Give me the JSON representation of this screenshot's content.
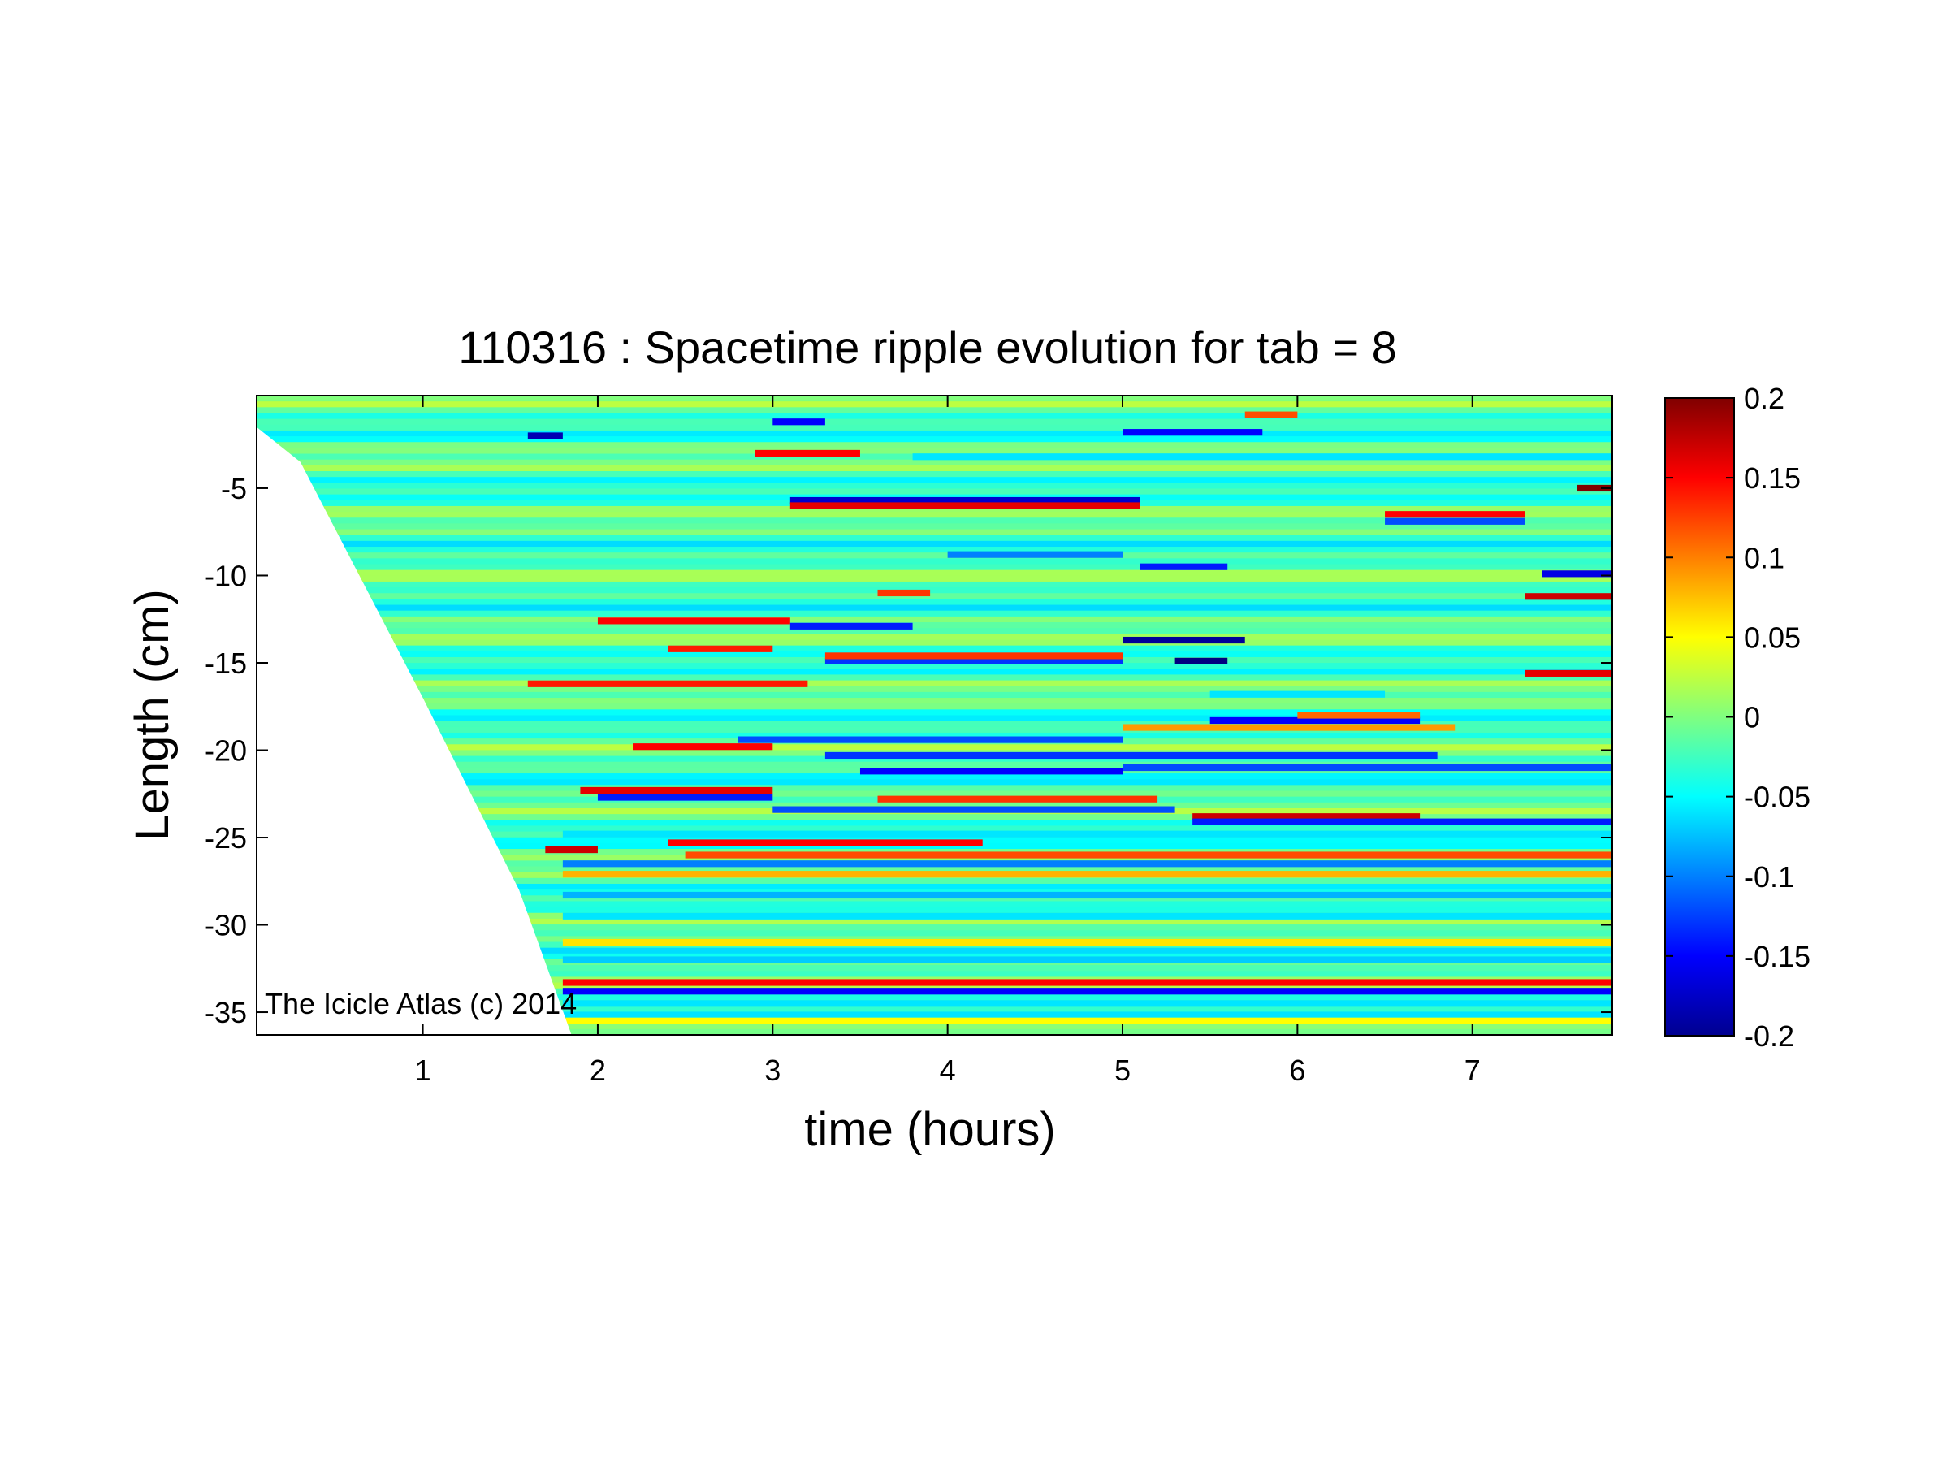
{
  "chart_data": {
    "type": "heatmap",
    "title": "110316 : Spacetime ripple evolution for tab = 8",
    "xlabel": "time (hours)",
    "ylabel": "Length (cm)",
    "xlim": [
      0.05,
      7.8
    ],
    "ylim": [
      -36.3,
      0.3
    ],
    "xticks": [
      1,
      2,
      3,
      4,
      5,
      6,
      7
    ],
    "xtick_labels": [
      "1",
      "2",
      "3",
      "4",
      "5",
      "6",
      "7"
    ],
    "yticks": [
      -5,
      -10,
      -15,
      -20,
      -25,
      -30,
      -35
    ],
    "ytick_labels": [
      "-5",
      "-10",
      "-15",
      "-20",
      "-25",
      "-30",
      "-35"
    ],
    "colorbar": {
      "colormap": "jet",
      "clim": [
        -0.2,
        0.2
      ],
      "ticks": [
        0.2,
        0.15,
        0.1,
        0.05,
        0,
        -0.05,
        -0.1,
        -0.15,
        -0.2
      ],
      "tick_labels": [
        "0.2",
        "0.15",
        "0.1",
        "0.05",
        "0",
        "-0.05",
        "-0.1",
        "-0.15",
        "-0.2"
      ]
    },
    "valid_region_boundary": [
      [
        0.05,
        -1.5
      ],
      [
        0.3,
        -3.5
      ],
      [
        1.0,
        -17.0
      ],
      [
        1.55,
        -28.0
      ],
      [
        1.85,
        -36.3
      ]
    ],
    "background_value": -0.02,
    "features": [
      {
        "y": -2.0,
        "t_start": 1.6,
        "t_end": 1.8,
        "value": -0.18
      },
      {
        "y": -1.2,
        "t_start": 3.0,
        "t_end": 3.3,
        "value": -0.15
      },
      {
        "y": -3.0,
        "t_start": 2.9,
        "t_end": 3.5,
        "value": 0.15
      },
      {
        "y": -3.2,
        "t_start": 3.8,
        "t_end": 7.8,
        "value": -0.06
      },
      {
        "y": -1.8,
        "t_start": 5.0,
        "t_end": 5.8,
        "value": -0.15
      },
      {
        "y": -0.8,
        "t_start": 5.7,
        "t_end": 6.0,
        "value": 0.12
      },
      {
        "y": -5.7,
        "t_start": 3.1,
        "t_end": 5.1,
        "value": -0.17
      },
      {
        "y": -6.0,
        "t_start": 3.1,
        "t_end": 5.1,
        "value": 0.16
      },
      {
        "y": -6.5,
        "t_start": 6.5,
        "t_end": 7.3,
        "value": 0.15
      },
      {
        "y": -6.9,
        "t_start": 6.5,
        "t_end": 7.3,
        "value": -0.12
      },
      {
        "y": -5.0,
        "t_start": 7.6,
        "t_end": 7.8,
        "value": 0.2
      },
      {
        "y": -8.8,
        "t_start": 4.0,
        "t_end": 5.0,
        "value": -0.1
      },
      {
        "y": -9.5,
        "t_start": 5.1,
        "t_end": 5.6,
        "value": -0.14
      },
      {
        "y": -11.0,
        "t_start": 3.6,
        "t_end": 3.9,
        "value": 0.13
      },
      {
        "y": -11.2,
        "t_start": 7.3,
        "t_end": 7.8,
        "value": 0.17
      },
      {
        "y": -9.9,
        "t_start": 7.4,
        "t_end": 7.8,
        "value": -0.16
      },
      {
        "y": -12.6,
        "t_start": 2.0,
        "t_end": 3.1,
        "value": 0.15
      },
      {
        "y": -12.9,
        "t_start": 3.1,
        "t_end": 3.8,
        "value": -0.14
      },
      {
        "y": -13.7,
        "t_start": 5.0,
        "t_end": 5.7,
        "value": -0.19
      },
      {
        "y": -14.2,
        "t_start": 2.4,
        "t_end": 3.0,
        "value": 0.14
      },
      {
        "y": -14.9,
        "t_start": 3.3,
        "t_end": 5.0,
        "value": -0.13
      },
      {
        "y": -14.6,
        "t_start": 3.3,
        "t_end": 5.0,
        "value": 0.13
      },
      {
        "y": -14.9,
        "t_start": 5.3,
        "t_end": 5.6,
        "value": -0.2
      },
      {
        "y": -15.6,
        "t_start": 7.3,
        "t_end": 7.8,
        "value": 0.16
      },
      {
        "y": -16.2,
        "t_start": 1.6,
        "t_end": 3.2,
        "value": 0.14
      },
      {
        "y": -16.8,
        "t_start": 5.5,
        "t_end": 6.5,
        "value": -0.06
      },
      {
        "y": -18.3,
        "t_start": 5.5,
        "t_end": 6.7,
        "value": -0.15
      },
      {
        "y": -18.0,
        "t_start": 6.0,
        "t_end": 6.7,
        "value": 0.11
      },
      {
        "y": -18.7,
        "t_start": 5.0,
        "t_end": 6.9,
        "value": 0.09
      },
      {
        "y": -19.4,
        "t_start": 2.8,
        "t_end": 5.0,
        "value": -0.12
      },
      {
        "y": -19.8,
        "t_start": 2.2,
        "t_end": 3.0,
        "value": 0.15
      },
      {
        "y": -20.3,
        "t_start": 3.3,
        "t_end": 6.8,
        "value": -0.13
      },
      {
        "y": -21.2,
        "t_start": 3.5,
        "t_end": 5.0,
        "value": -0.15
      },
      {
        "y": -21.0,
        "t_start": 5.0,
        "t_end": 7.8,
        "value": -0.12
      },
      {
        "y": -22.3,
        "t_start": 1.9,
        "t_end": 3.0,
        "value": 0.16
      },
      {
        "y": -22.7,
        "t_start": 2.0,
        "t_end": 3.0,
        "value": -0.14
      },
      {
        "y": -22.8,
        "t_start": 3.6,
        "t_end": 5.2,
        "value": 0.13
      },
      {
        "y": -23.4,
        "t_start": 3.0,
        "t_end": 5.3,
        "value": -0.12
      },
      {
        "y": -23.8,
        "t_start": 5.4,
        "t_end": 6.7,
        "value": 0.17
      },
      {
        "y": -24.1,
        "t_start": 5.4,
        "t_end": 7.8,
        "value": -0.14
      },
      {
        "y": -24.8,
        "t_start": 1.8,
        "t_end": 7.8,
        "value": -0.06
      },
      {
        "y": -25.3,
        "t_start": 2.4,
        "t_end": 4.2,
        "value": 0.15
      },
      {
        "y": -25.7,
        "t_start": 1.7,
        "t_end": 2.0,
        "value": 0.17
      },
      {
        "y": -26.0,
        "t_start": 2.5,
        "t_end": 7.8,
        "value": 0.12
      },
      {
        "y": -26.5,
        "t_start": 1.8,
        "t_end": 7.8,
        "value": -0.1
      },
      {
        "y": -27.1,
        "t_start": 1.8,
        "t_end": 7.8,
        "value": 0.08
      },
      {
        "y": -28.3,
        "t_start": 1.8,
        "t_end": 7.8,
        "value": -0.08
      },
      {
        "y": -29.5,
        "t_start": 1.8,
        "t_end": 7.8,
        "value": -0.06
      },
      {
        "y": -31.0,
        "t_start": 1.8,
        "t_end": 7.8,
        "value": 0.06
      },
      {
        "y": -32.0,
        "t_start": 1.8,
        "t_end": 7.8,
        "value": -0.07
      },
      {
        "y": -33.3,
        "t_start": 1.8,
        "t_end": 7.8,
        "value": 0.15
      },
      {
        "y": -33.8,
        "t_start": 1.8,
        "t_end": 7.8,
        "value": -0.15
      },
      {
        "y": -34.5,
        "t_start": 1.8,
        "t_end": 7.8,
        "value": -0.06
      },
      {
        "y": -35.5,
        "t_start": 1.8,
        "t_end": 7.8,
        "value": 0.05
      }
    ]
  },
  "watermark": "The Icicle Atlas (c) 2014"
}
